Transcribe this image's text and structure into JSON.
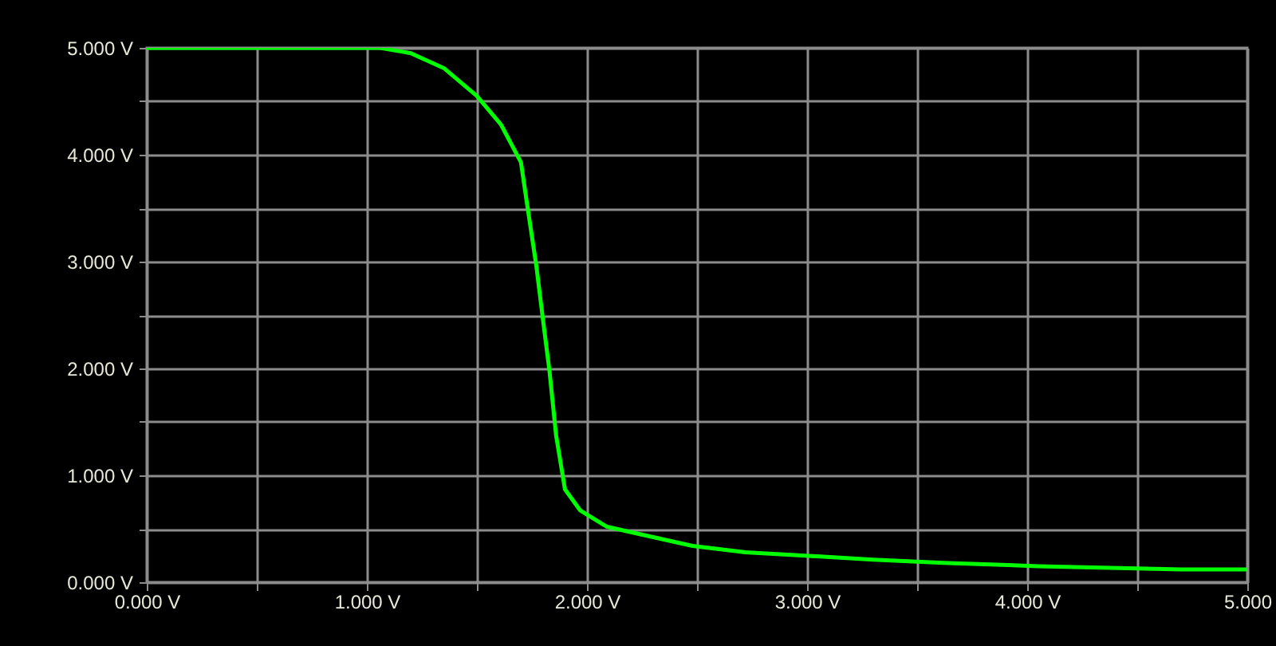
{
  "chart_data": {
    "type": "line",
    "x": [
      0,
      1.06,
      1.2,
      1.35,
      1.5,
      1.61,
      1.7,
      1.73,
      1.77,
      1.8,
      1.83,
      1.86,
      1.9,
      1.97,
      2.09,
      2.24,
      2.48,
      2.72,
      3.06,
      3.3,
      3.64,
      4.05,
      4.7,
      5.0
    ],
    "series": [
      {
        "color": "#00ff00",
        "values": [
          5.0,
          5.0,
          4.95,
          4.81,
          4.55,
          4.28,
          3.93,
          3.51,
          2.96,
          2.46,
          1.97,
          1.37,
          0.87,
          0.67,
          0.52,
          0.45,
          0.34,
          0.28,
          0.24,
          0.21,
          0.18,
          0.15,
          0.12,
          0.12
        ]
      }
    ],
    "xlim": [
      0,
      5
    ],
    "ylim": [
      0,
      5
    ],
    "xticks": [
      {
        "value": 0,
        "label": "0.000 V"
      },
      {
        "value": 0.5,
        "label": null
      },
      {
        "value": 1,
        "label": "1.000 V"
      },
      {
        "value": 1.5,
        "label": null
      },
      {
        "value": 2,
        "label": "2.000 V"
      },
      {
        "value": 2.5,
        "label": null
      },
      {
        "value": 3,
        "label": "3.000 V"
      },
      {
        "value": 3.5,
        "label": null
      },
      {
        "value": 4,
        "label": "4.000 V"
      },
      {
        "value": 4.5,
        "label": null
      },
      {
        "value": 5,
        "label": "5.000"
      }
    ],
    "yticks": [
      {
        "value": 0,
        "label": "0.000 V"
      },
      {
        "value": 0.5,
        "label": null
      },
      {
        "value": 1,
        "label": "1.000 V"
      },
      {
        "value": 1.5,
        "label": null
      },
      {
        "value": 2,
        "label": "2.000 V"
      },
      {
        "value": 2.5,
        "label": null
      },
      {
        "value": 3,
        "label": "3.000 V"
      },
      {
        "value": 3.5,
        "label": null
      },
      {
        "value": 4,
        "label": "4.000 V"
      },
      {
        "value": 4.5,
        "label": null
      },
      {
        "value": 5,
        "label": "5.000 V"
      }
    ],
    "grid": true,
    "marker": "none",
    "line_style": "solid",
    "legend": false
  }
}
